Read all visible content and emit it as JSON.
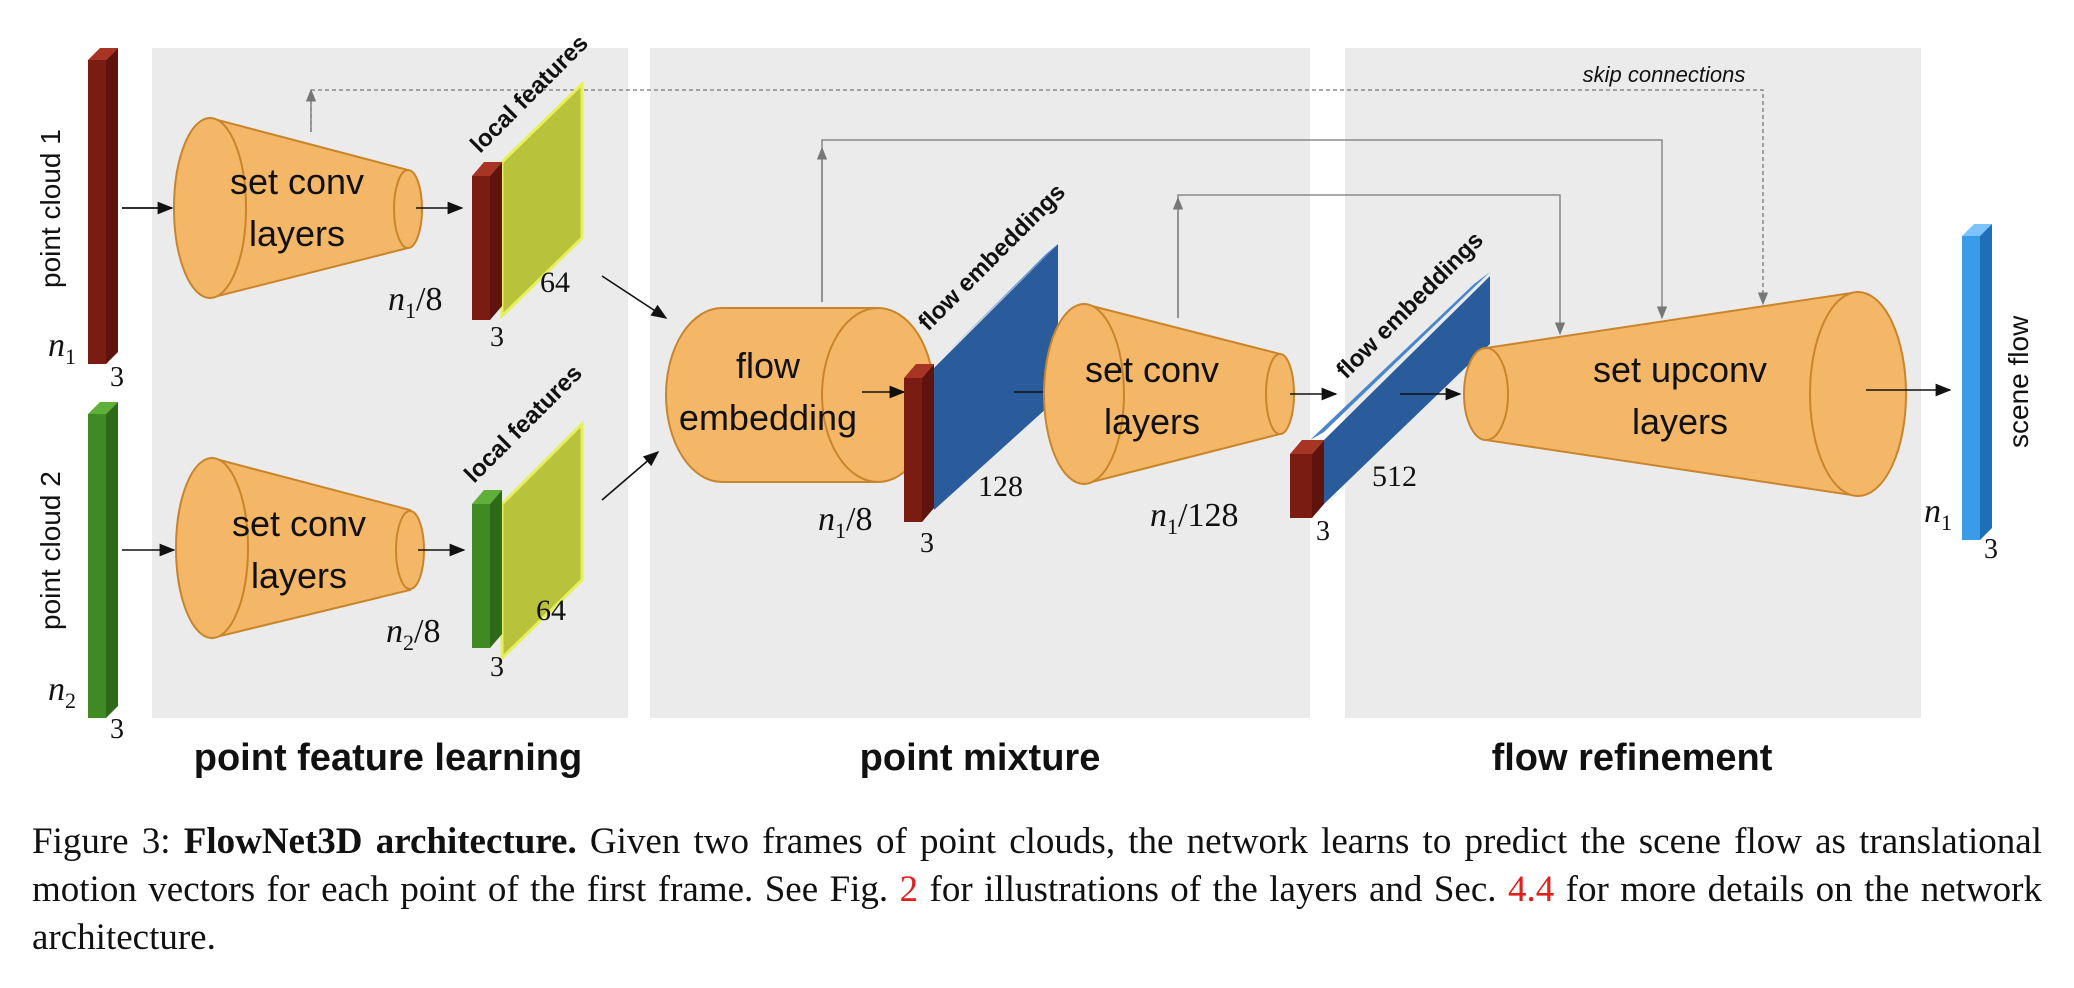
{
  "sections": {
    "feature": "point feature learning",
    "mixture": "point mixture",
    "refinement": "flow refinement"
  },
  "inputs": {
    "cloud1": "point cloud 1",
    "cloud2": "point cloud 2",
    "n1": "n",
    "n1_sub": "1",
    "n2": "n",
    "n2_sub": "2",
    "dim": "3"
  },
  "blocks": {
    "setconv_line1": "set conv",
    "setconv_line2": "layers",
    "flow_line1": "flow",
    "flow_line2": "embedding",
    "upconv_line1": "set upconv",
    "upconv_line2": "layers"
  },
  "features": {
    "local_features": "local features",
    "flow_embeddings": "flow embeddings",
    "c64": "64",
    "c128": "128",
    "c512": "512",
    "n1_8": "n",
    "n1_8_sub": "1",
    "n1_8_tail": "/8",
    "n2_8": "n",
    "n2_8_sub": "2",
    "n2_8_tail": "/8",
    "mix_n": "n",
    "mix_sub": "1",
    "mix_tail": "/8",
    "conv_n": "n",
    "conv_sub": "1",
    "conv_tail": "/128",
    "three": "3"
  },
  "output": {
    "scene_flow": "scene flow",
    "n": "n",
    "sub": "1",
    "dim": "3"
  },
  "skip": "skip connections",
  "caption": {
    "prefix": "Figure 3: ",
    "bold": "FlowNet3D architecture.",
    "text1": " Given two frames of point clouds, the network learns to predict the scene flow as translational motion vectors for each point of the first frame. See Fig. ",
    "ref1": "2",
    "text2": " for illustrations of the layers and Sec. ",
    "ref2": "4.4",
    "text3": " for more details on the network architecture."
  },
  "colors": {
    "panel": "#ebebeb",
    "cone": "#f4b768",
    "cone_stroke": "#c8852c",
    "red_bar": "#7b1c12",
    "green_bar": "#3f8a22",
    "lime_feature": "#b8c23a",
    "blue_feature": "#2a5c9c",
    "light_blue": "#3a9be8",
    "reference": "#e0201c"
  }
}
